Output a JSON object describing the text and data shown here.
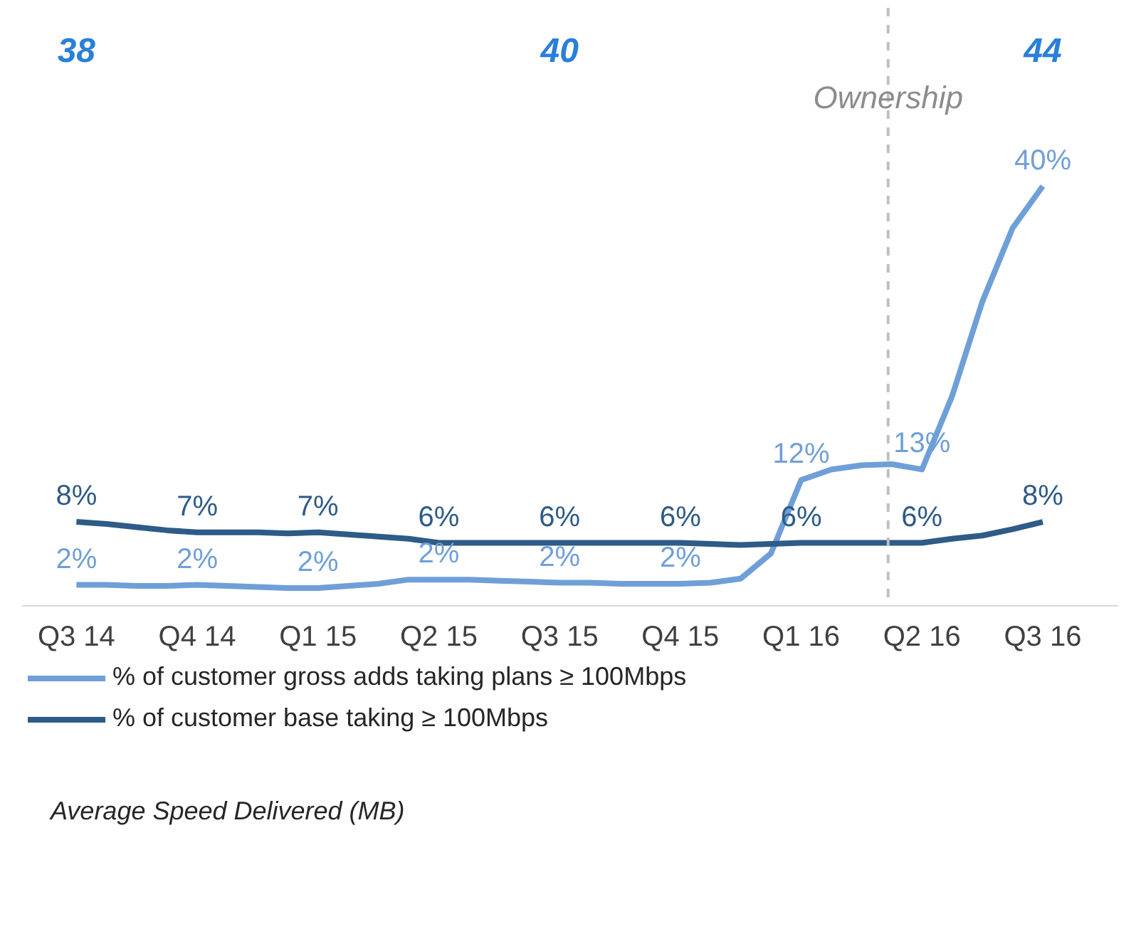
{
  "chart_data": {
    "type": "line",
    "ylim": [
      0,
      57
    ],
    "categories": [
      "Q3 14",
      null,
      null,
      null,
      "Q4 14",
      null,
      null,
      null,
      "Q1 15",
      null,
      null,
      null,
      "Q2 15",
      null,
      null,
      null,
      "Q3 15",
      null,
      null,
      null,
      "Q4 15",
      null,
      null,
      null,
      "Q1 16",
      null,
      null,
      null,
      "Q2 16",
      null,
      null,
      null,
      "Q3 16"
    ],
    "tick_labels": "x",
    "legend": "bottom",
    "marker": "none",
    "line_style": "solid",
    "series": [
      {
        "name": "% of customer gross adds taking plans ≥ 100Mbps",
        "color": "#6f9fd8",
        "values": [
          2,
          2,
          1.9,
          1.9,
          2,
          1.9,
          1.8,
          1.7,
          1.7,
          1.9,
          2.1,
          2.5,
          2.5,
          2.5,
          2.4,
          2.3,
          2.2,
          2.2,
          2.1,
          2.1,
          2.1,
          2.2,
          2.6,
          5,
          12,
          13,
          13.4,
          13.5,
          13,
          20,
          29,
          36,
          40
        ],
        "value_labels": [
          "2%",
          null,
          null,
          null,
          "2%",
          null,
          null,
          null,
          "2%",
          null,
          null,
          null,
          "2%",
          null,
          null,
          null,
          "2%",
          null,
          null,
          null,
          "2%",
          null,
          null,
          null,
          "12%",
          null,
          null,
          null,
          "13%",
          null,
          null,
          null,
          "40%"
        ]
      },
      {
        "name": "% of customer base taking ≥ 100Mbps",
        "color": "#2e5b87",
        "values": [
          8,
          7.8,
          7.5,
          7.2,
          7,
          7,
          7,
          6.9,
          7,
          6.8,
          6.6,
          6.4,
          6,
          6,
          6,
          6,
          6,
          6,
          6,
          6,
          6,
          5.9,
          5.8,
          5.9,
          6,
          6,
          6,
          6,
          6,
          6.4,
          6.7,
          7.3,
          8
        ],
        "value_labels": [
          "8%",
          null,
          null,
          null,
          "7%",
          null,
          null,
          null,
          "7%",
          null,
          null,
          null,
          "6%",
          null,
          null,
          null,
          "6%",
          null,
          null,
          null,
          "6%",
          null,
          null,
          null,
          "6%",
          null,
          null,
          null,
          "6%",
          null,
          null,
          null,
          "8%"
        ]
      }
    ],
    "annotations": [
      "38",
      "40",
      "44",
      "Average Speed Delivered (MB)",
      "Ownership"
    ]
  }
}
